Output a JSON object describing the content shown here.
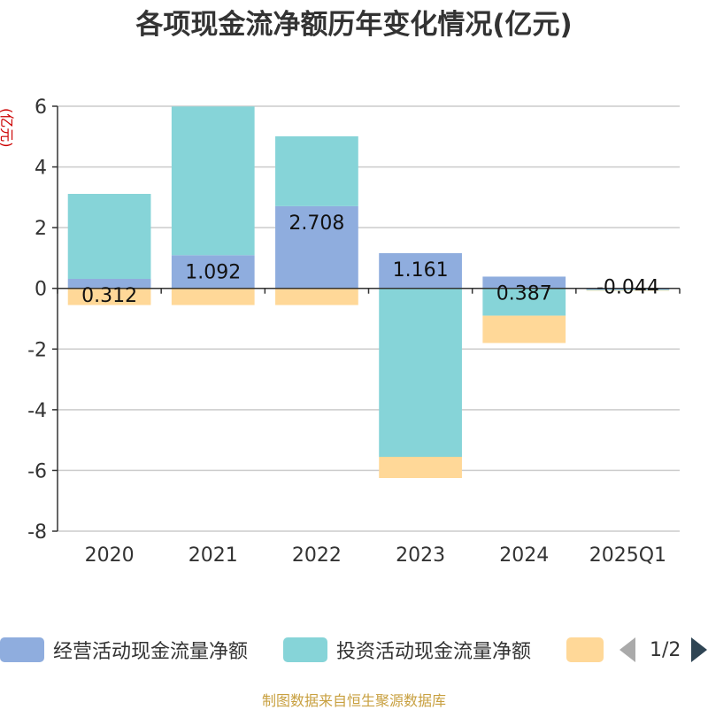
{
  "chart_data": {
    "type": "bar",
    "stacked": true,
    "title": "各项现金流净额历年变化情况(亿元)",
    "unit_label": "(亿元)",
    "categories": [
      "2020",
      "2021",
      "2022",
      "2023",
      "2024",
      "2025Q1"
    ],
    "ylim": [
      -8,
      6
    ],
    "yticks": [
      6,
      4,
      2,
      0,
      -2,
      -4,
      -6,
      -8
    ],
    "grid": true,
    "legend_position": "bottom",
    "series": [
      {
        "name": "经营活动现金流量净额",
        "color": "#8fadde",
        "values": [
          0.312,
          1.092,
          2.708,
          1.161,
          0.387,
          -0.044
        ]
      },
      {
        "name": "投资活动现金流量净额",
        "color": "#86d4d8",
        "values": [
          2.8,
          4.9,
          2.3,
          -5.55,
          -0.9,
          -0.02
        ]
      },
      {
        "name": "",
        "color": "#ffd898",
        "values": [
          -0.55,
          -0.55,
          -0.55,
          -0.7,
          -0.9,
          -0.01
        ]
      }
    ],
    "data_labels": [
      "0.312",
      "1.092",
      "2.708",
      "1.161",
      "0.387",
      "-0.044"
    ]
  },
  "legend": {
    "pager": "1/2"
  },
  "source": "制图数据来自恒生聚源数据库"
}
